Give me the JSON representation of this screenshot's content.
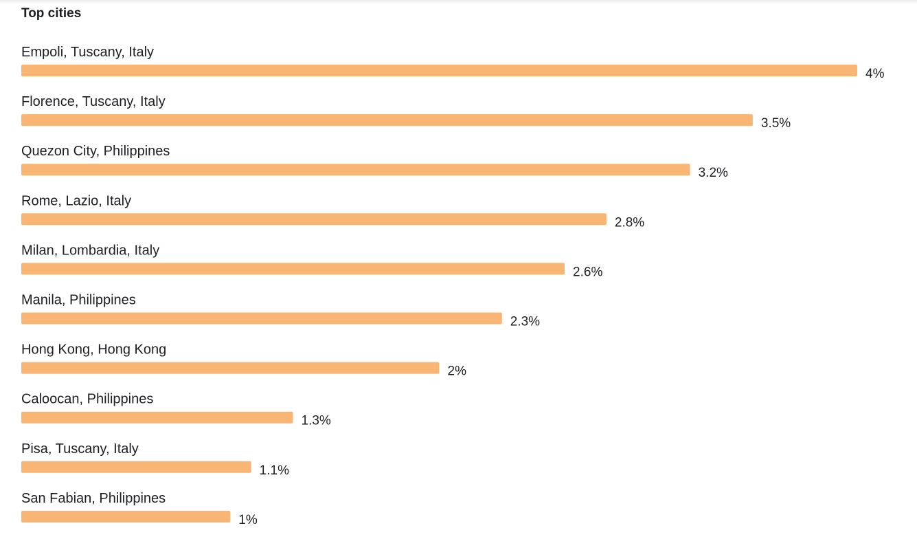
{
  "card": {
    "title": "Top cities"
  },
  "colors": {
    "bar": "#f8b573",
    "text": "#1c1e21",
    "background": "#ffffff"
  },
  "chart_data": {
    "type": "bar",
    "orientation": "horizontal",
    "title": "Top cities",
    "xlabel": "",
    "ylabel": "",
    "xlim": [
      0,
      4
    ],
    "grid": false,
    "legend": "none",
    "categories": [
      "Empoli, Tuscany, Italy",
      "Florence, Tuscany, Italy",
      "Quezon City, Philippines",
      "Rome, Lazio, Italy",
      "Milan, Lombardia, Italy",
      "Manila, Philippines",
      "Hong Kong, Hong Kong",
      "Caloocan, Philippines",
      "Pisa, Tuscany, Italy",
      "San Fabian, Philippines"
    ],
    "values": [
      4,
      3.5,
      3.2,
      2.8,
      2.6,
      2.3,
      2,
      1.3,
      1.1,
      1
    ],
    "value_labels": [
      "4%",
      "3.5%",
      "3.2%",
      "2.8%",
      "2.6%",
      "2.3%",
      "2%",
      "1.3%",
      "1.1%",
      "1%"
    ]
  }
}
